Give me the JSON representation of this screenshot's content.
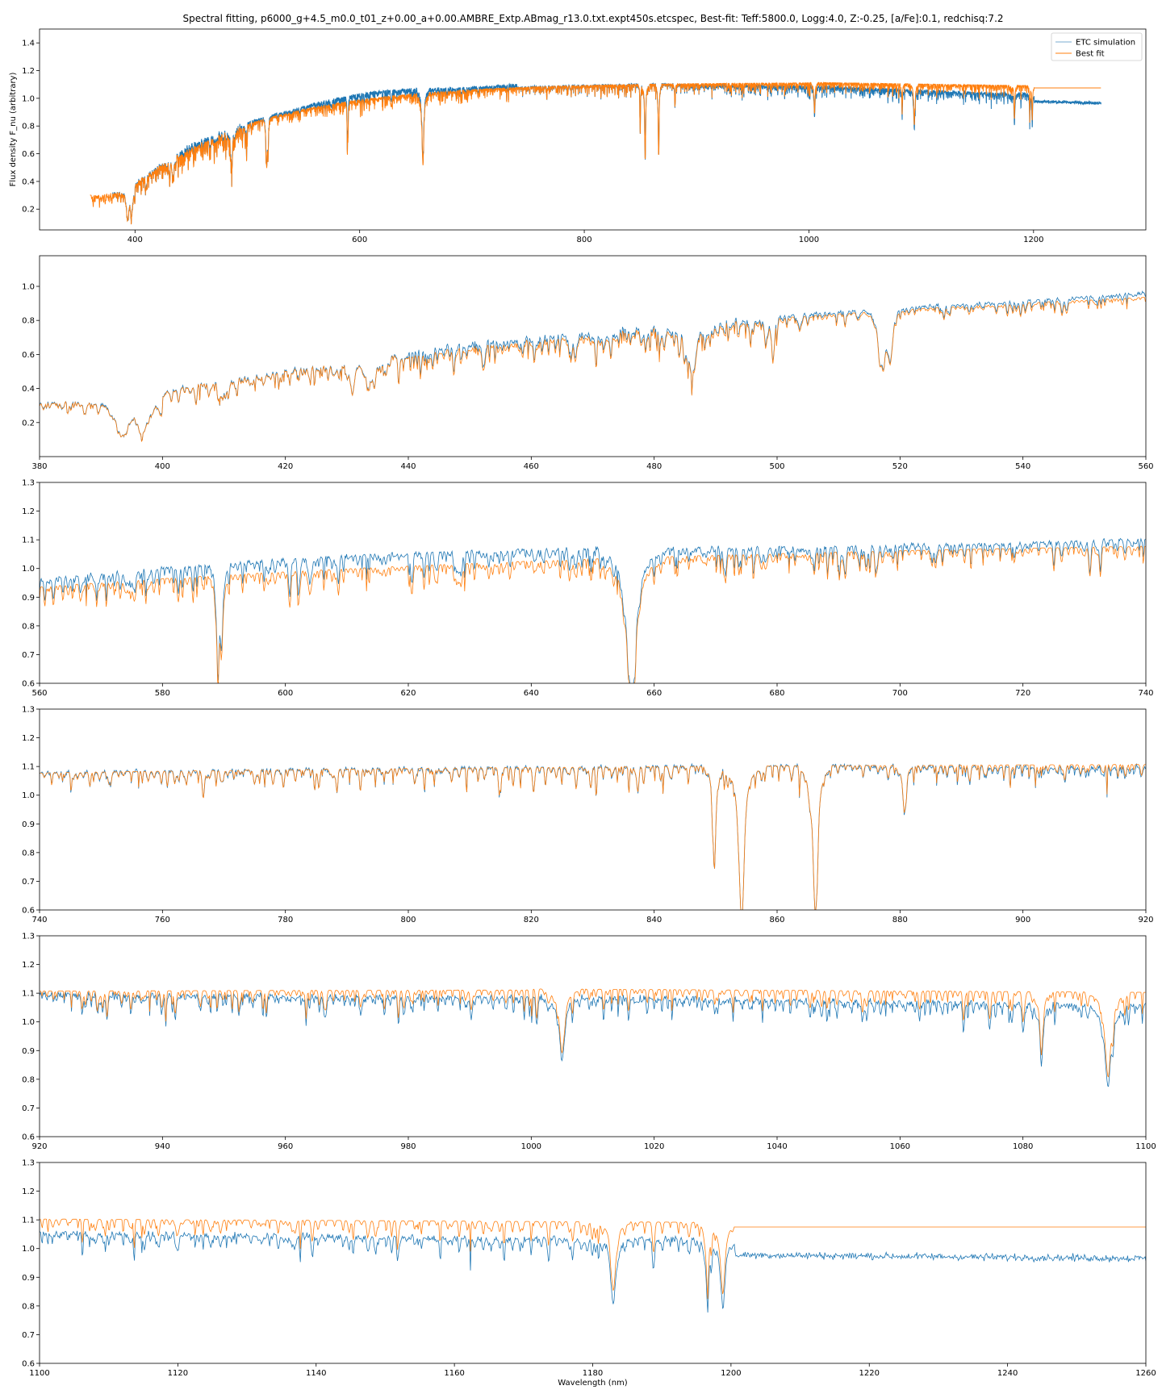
{
  "figure": {
    "title": "Spectral fitting, p6000_g+4.5_m0.0_t01_z+0.00_a+0.00.AMBRE_Extp.ABmag_r13.0.txt.expt450s.etcspec, Best-fit: Teff:5800.0, Logg:4.0, Z:-0.25, [a/Fe]:0.1, redchisq:7.2"
  },
  "colors": {
    "etc": "#1f77b4",
    "fit": "#ff7f0e",
    "axes": "#000000"
  },
  "chart_data": [
    {
      "type": "line",
      "xlabel": "",
      "ylabel": "Flux density F_nu (arbitrary)",
      "xlim": [
        315,
        1300
      ],
      "ylim": [
        0.05,
        1.5
      ],
      "xticks": [
        400,
        600,
        800,
        1000,
        1200
      ],
      "yticks": [
        0.2,
        0.4,
        0.6,
        0.8,
        1.0,
        1.2,
        1.4
      ],
      "legend": {
        "placement": "top-right",
        "entries": [
          "ETC simulation",
          "Best fit"
        ]
      },
      "series": [
        {
          "name": "ETC simulation",
          "x_range": [
            380,
            1260
          ]
        },
        {
          "name": "Best fit",
          "x_range": [
            360,
            1260
          ]
        }
      ]
    },
    {
      "type": "line",
      "xlabel": "",
      "ylabel": "",
      "xlim": [
        380,
        560
      ],
      "ylim": [
        0.0,
        1.18
      ],
      "xticks": [
        380,
        400,
        420,
        440,
        460,
        480,
        500,
        520,
        540,
        560
      ],
      "yticks": [
        0.2,
        0.4,
        0.6,
        0.8,
        1.0
      ],
      "series": [
        {
          "name": "ETC simulation"
        },
        {
          "name": "Best fit"
        }
      ]
    },
    {
      "type": "line",
      "xlabel": "",
      "ylabel": "",
      "xlim": [
        560,
        740
      ],
      "ylim": [
        0.6,
        1.3
      ],
      "xticks": [
        560,
        580,
        600,
        620,
        640,
        660,
        680,
        700,
        720,
        740
      ],
      "yticks": [
        0.6,
        0.7,
        0.8,
        0.9,
        1.0,
        1.1,
        1.2,
        1.3
      ],
      "series": [
        {
          "name": "ETC simulation"
        },
        {
          "name": "Best fit"
        }
      ]
    },
    {
      "type": "line",
      "xlabel": "",
      "ylabel": "",
      "xlim": [
        740,
        920
      ],
      "ylim": [
        0.6,
        1.3
      ],
      "xticks": [
        740,
        760,
        780,
        800,
        820,
        840,
        860,
        880,
        900,
        920
      ],
      "yticks": [
        0.6,
        0.7,
        0.8,
        0.9,
        1.0,
        1.1,
        1.2,
        1.3
      ],
      "series": [
        {
          "name": "ETC simulation"
        },
        {
          "name": "Best fit"
        }
      ]
    },
    {
      "type": "line",
      "xlabel": "",
      "ylabel": "",
      "xlim": [
        920,
        1100
      ],
      "ylim": [
        0.6,
        1.3
      ],
      "xticks": [
        920,
        940,
        960,
        980,
        1000,
        1020,
        1040,
        1060,
        1080,
        1100
      ],
      "yticks": [
        0.6,
        0.7,
        0.8,
        0.9,
        1.0,
        1.1,
        1.2,
        1.3
      ],
      "series": [
        {
          "name": "ETC simulation"
        },
        {
          "name": "Best fit"
        }
      ]
    },
    {
      "type": "line",
      "xlabel": "Wavelength (nm)",
      "ylabel": "",
      "xlim": [
        1100,
        1260
      ],
      "ylim": [
        0.6,
        1.3
      ],
      "xticks": [
        1100,
        1120,
        1140,
        1160,
        1180,
        1200,
        1220,
        1240,
        1260
      ],
      "yticks": [
        0.6,
        0.7,
        0.8,
        0.9,
        1.0,
        1.1,
        1.2,
        1.3
      ],
      "series": [
        {
          "name": "ETC simulation"
        },
        {
          "name": "Best fit"
        }
      ]
    }
  ]
}
